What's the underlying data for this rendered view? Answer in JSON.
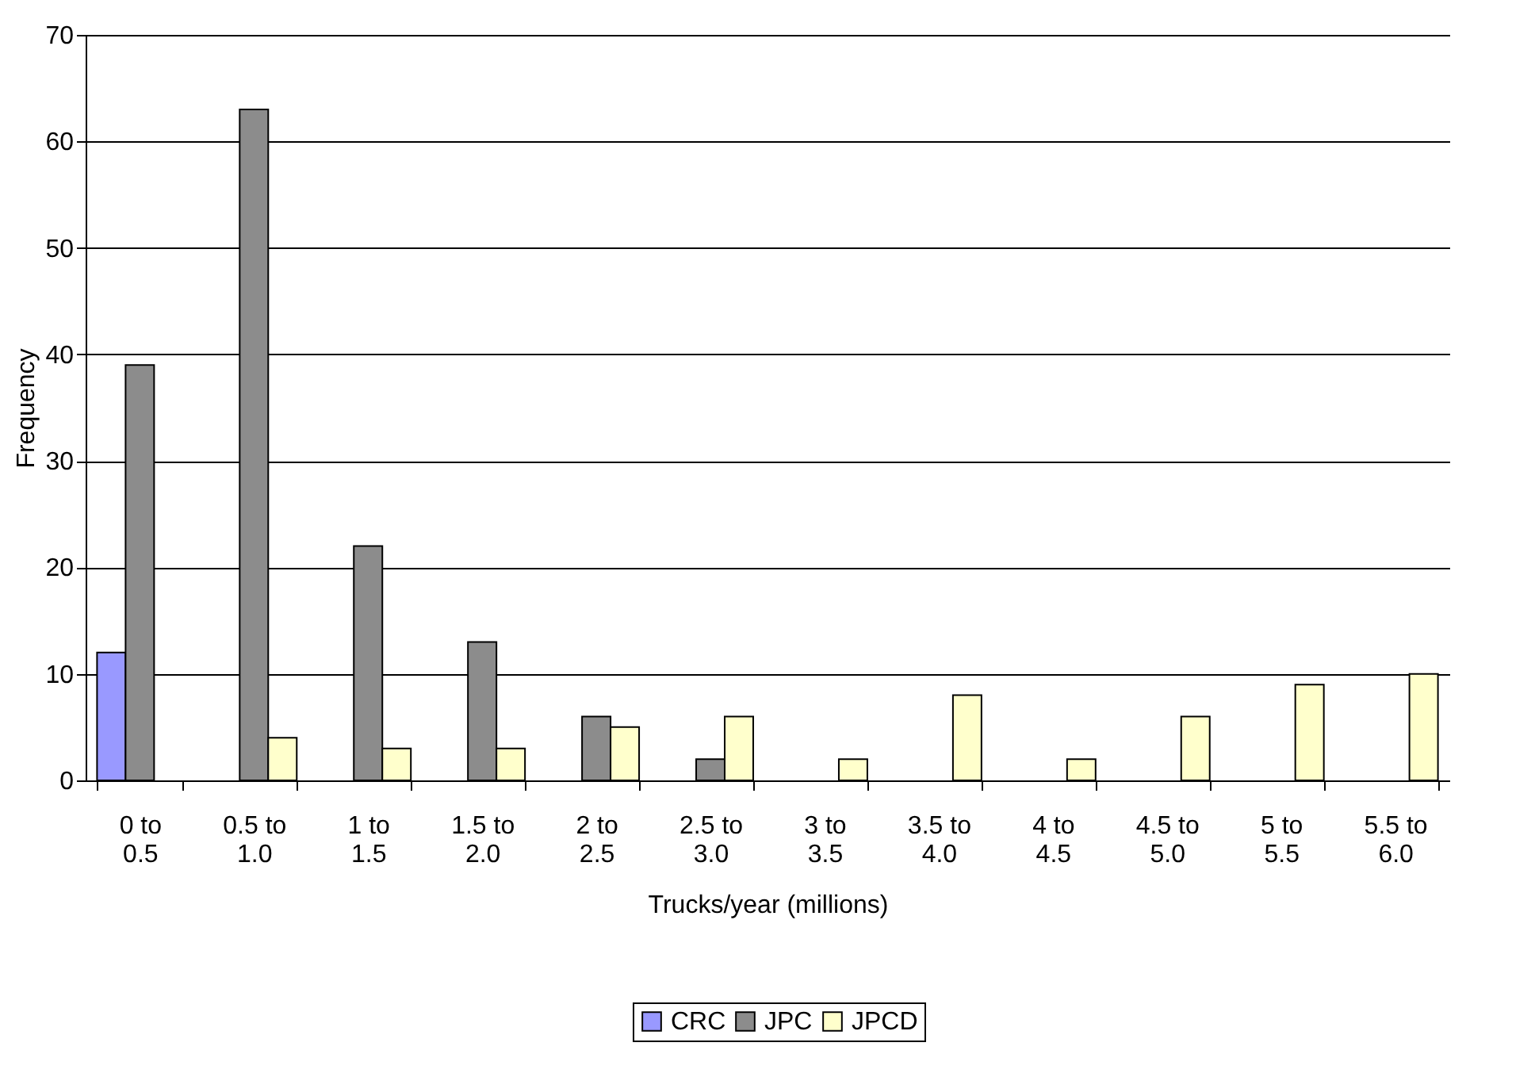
{
  "chart_data": {
    "type": "bar",
    "xlabel": "Trucks/year (millions)",
    "ylabel": "Frequency",
    "categories": [
      "0 to 0.5",
      "0.5 to 1.0",
      "1 to 1.5",
      "1.5 to 2.0",
      "2 to 2.5",
      "2.5 to 3.0",
      "3 to 3.5",
      "3.5 to 4.0",
      "4 to 4.5",
      "4.5 to 5.0",
      "5 to 5.5",
      "5.5 to 6.0"
    ],
    "series": [
      {
        "name": "CRC",
        "color": "#9999ff",
        "values": [
          12,
          0,
          0,
          0,
          0,
          0,
          0,
          0,
          0,
          0,
          0,
          0
        ]
      },
      {
        "name": "JPC",
        "color": "#8c8c8c",
        "values": [
          39,
          63,
          22,
          13,
          6,
          2,
          0,
          0,
          0,
          0,
          0,
          0
        ]
      },
      {
        "name": "JPCD",
        "color": "#ffffcc",
        "values": [
          0,
          4,
          3,
          3,
          5,
          6,
          2,
          8,
          2,
          6,
          9,
          10
        ]
      }
    ],
    "ylim": [
      0,
      70
    ],
    "yticks": [
      0,
      10,
      20,
      30,
      40,
      50,
      60,
      70
    ],
    "grid": "y",
    "legend": "bottom"
  }
}
